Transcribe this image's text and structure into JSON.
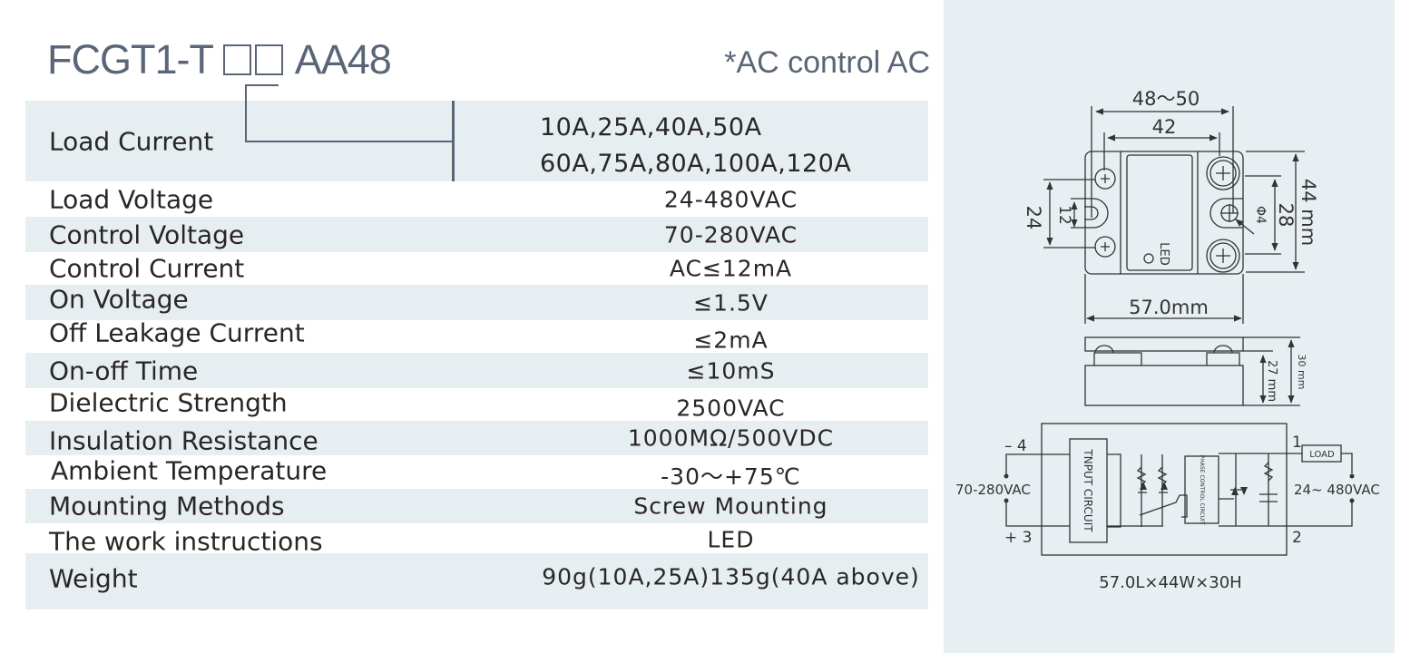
{
  "header": {
    "model_prefix": "FCGT1-T",
    "model_suffix": "AA48",
    "control_type": "*AC control AC"
  },
  "specs": [
    {
      "label": "Load Current",
      "values": [
        "10A,25A,40A,50A",
        "60A,75A,80A,100A,120A"
      ]
    },
    {
      "label": "Load Voltage",
      "value": "24-480VAC"
    },
    {
      "label": "Control Voltage",
      "value": "70-280VAC"
    },
    {
      "label": "Control Current",
      "value": "AC≤12mA"
    },
    {
      "label": "On Voltage",
      "value": "≤1.5V"
    },
    {
      "label": "Off Leakage Current",
      "value": "≤2mA"
    },
    {
      "label": "On-off Time",
      "value": "≤10mS"
    },
    {
      "label": "Dielectric Strength",
      "value": "2500VAC"
    },
    {
      "label": "Insulation Resistance",
      "value": "1000MΩ/500VDC"
    },
    {
      "label": "Ambient Temperature",
      "value": "-30～+75℃"
    },
    {
      "label": "Mounting Methods",
      "value": "Screw Mounting"
    },
    {
      "label": "The work instructions",
      "value": "LED"
    },
    {
      "label": "Weight",
      "value": "90g(10A,25A)135g(40A above)"
    }
  ],
  "dimensions": {
    "mount_span": "48～50",
    "hole_pitch": "42",
    "width": "57.0mm",
    "height": "44 mm",
    "terminal_pitch": "28",
    "slot_span": "24",
    "slot_width": "12",
    "hole_diameter": "Φ4",
    "led_label": "LED",
    "total_height": "30 mm",
    "body_height": "27 mm"
  },
  "circuit": {
    "input_neg": "– 4",
    "input_pos": "+ 3",
    "input_voltage": "70-280VAC",
    "input_block": "TNPUT CIRCUIT",
    "phase_block": "PHASE CONTROL CIRCUIT",
    "out_1": "1",
    "out_2": "2",
    "load": "LOAD",
    "output_voltage": "24~ 480VAC",
    "size": "57.0L×44W×30H"
  },
  "colors": {
    "title": "#5a6678",
    "stripe": "#e6eef2",
    "panel": "#e8eff3"
  }
}
